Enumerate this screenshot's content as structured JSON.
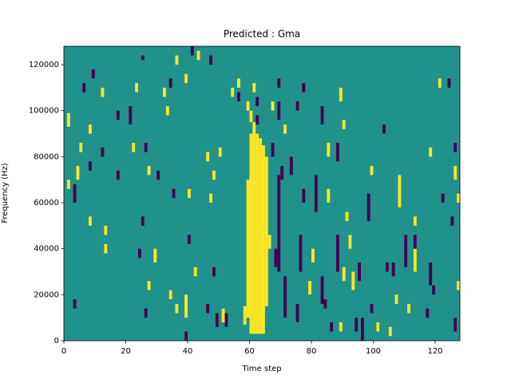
{
  "chart_data": {
    "type": "heatmap",
    "title": "Predicted : Gma",
    "xlabel": "Time step",
    "ylabel": "Frequency (Hz)",
    "xlim": [
      0,
      128
    ],
    "ylim": [
      0,
      128000
    ],
    "xticks": [
      0,
      20,
      40,
      60,
      80,
      100,
      120
    ],
    "yticks": [
      0,
      20000,
      40000,
      60000,
      80000,
      100000,
      120000
    ],
    "background": "#21918c",
    "layers": [
      {
        "color": "#fde725",
        "cells": [
          [
            58,
            7000,
            15000
          ],
          [
            59,
            10000,
            70000
          ],
          [
            60,
            3000,
            90000
          ],
          [
            61,
            3000,
            95000
          ],
          [
            62,
            3000,
            90000
          ],
          [
            63,
            3000,
            88000
          ],
          [
            64,
            3000,
            85000
          ],
          [
            65,
            15000,
            80000
          ],
          [
            59,
            100000,
            104000
          ],
          [
            60,
            95000,
            100000
          ],
          [
            1,
            93000,
            99000
          ],
          [
            5,
            82000,
            86000
          ],
          [
            4,
            70000,
            76000
          ],
          [
            1,
            66000,
            70000
          ],
          [
            8,
            90000,
            94000
          ],
          [
            12,
            106000,
            110000
          ],
          [
            8,
            50000,
            54000
          ],
          [
            13,
            46000,
            50000
          ],
          [
            13,
            38000,
            42000
          ],
          [
            22,
            82000,
            86000
          ],
          [
            23,
            108000,
            112000
          ],
          [
            27,
            72000,
            76000
          ],
          [
            27,
            22000,
            26000
          ],
          [
            29,
            34000,
            40000
          ],
          [
            32,
            106000,
            110000
          ],
          [
            33,
            98000,
            102000
          ],
          [
            34,
            18000,
            22000
          ],
          [
            36,
            120000,
            124000
          ],
          [
            36,
            12000,
            16000
          ],
          [
            39,
            10000,
            20000
          ],
          [
            40,
            62000,
            66000
          ],
          [
            42,
            28000,
            32000
          ],
          [
            43,
            122000,
            126000
          ],
          [
            39,
            112000,
            116000
          ],
          [
            46,
            78000,
            82000
          ],
          [
            48,
            70000,
            74000
          ],
          [
            50,
            80000,
            84000
          ],
          [
            47,
            60000,
            64000
          ],
          [
            51,
            8000,
            14000
          ],
          [
            54,
            106000,
            110000
          ],
          [
            56,
            110000,
            114000
          ],
          [
            61,
            108000,
            112000
          ],
          [
            67,
            100000,
            104000
          ],
          [
            71,
            90000,
            94000
          ],
          [
            66,
            40000,
            46000
          ],
          [
            80,
            34000,
            40000
          ],
          [
            79,
            20000,
            26000
          ],
          [
            85,
            80000,
            86000
          ],
          [
            85,
            60000,
            66000
          ],
          [
            89,
            104000,
            110000
          ],
          [
            90,
            92000,
            96000
          ],
          [
            90,
            26000,
            32000
          ],
          [
            93,
            22000,
            30000
          ],
          [
            91,
            52000,
            56000
          ],
          [
            92,
            40000,
            46000
          ],
          [
            99,
            72000,
            76000
          ],
          [
            108,
            58000,
            72000
          ],
          [
            113,
            50000,
            54000
          ],
          [
            113,
            30000,
            40000
          ],
          [
            118,
            80000,
            84000
          ],
          [
            121,
            110000,
            114000
          ],
          [
            126,
            70000,
            76000
          ],
          [
            127,
            22000,
            26000
          ],
          [
            127,
            60000,
            64000
          ],
          [
            107,
            16000,
            20000
          ],
          [
            111,
            12000,
            16000
          ],
          [
            89,
            4000,
            8000
          ],
          [
            101,
            4000,
            8000
          ],
          [
            105,
            2000,
            6000
          ]
        ]
      },
      {
        "color": "#440154",
        "cells": [
          [
            9,
            114000,
            118000
          ],
          [
            6,
            108000,
            112000
          ],
          [
            3,
            60000,
            68000
          ],
          [
            3,
            14000,
            18000
          ],
          [
            8,
            74000,
            78000
          ],
          [
            12,
            80000,
            84000
          ],
          [
            17,
            96000,
            100000
          ],
          [
            21,
            94000,
            102000
          ],
          [
            17,
            70000,
            74000
          ],
          [
            25,
            122000,
            124000
          ],
          [
            26,
            82000,
            86000
          ],
          [
            25,
            50000,
            54000
          ],
          [
            24,
            36000,
            40000
          ],
          [
            26,
            10000,
            14000
          ],
          [
            30,
            70000,
            74000
          ],
          [
            34,
            110000,
            114000
          ],
          [
            35,
            62000,
            66000
          ],
          [
            40,
            42000,
            46000
          ],
          [
            39,
            0,
            4000
          ],
          [
            41,
            124000,
            128000
          ],
          [
            46,
            12000,
            16000
          ],
          [
            48,
            28000,
            32000
          ],
          [
            49,
            6000,
            12000
          ],
          [
            47,
            120000,
            124000
          ],
          [
            52,
            6000,
            12000
          ],
          [
            56,
            104000,
            108000
          ],
          [
            62,
            102000,
            106000
          ],
          [
            62,
            94000,
            98000
          ],
          [
            67,
            80000,
            86000
          ],
          [
            69,
            110000,
            114000
          ],
          [
            69,
            30000,
            72000
          ],
          [
            70,
            70000,
            76000
          ],
          [
            71,
            10000,
            28000
          ],
          [
            68,
            32000,
            40000
          ],
          [
            73,
            72000,
            80000
          ],
          [
            75,
            100000,
            104000
          ],
          [
            77,
            60000,
            66000
          ],
          [
            77,
            108000,
            112000
          ],
          [
            76,
            30000,
            46000
          ],
          [
            75,
            8000,
            16000
          ],
          [
            81,
            56000,
            72000
          ],
          [
            83,
            94000,
            102000
          ],
          [
            83,
            16000,
            28000
          ],
          [
            84,
            14000,
            18000
          ],
          [
            86,
            4000,
            8000
          ],
          [
            88,
            78000,
            86000
          ],
          [
            88,
            30000,
            46000
          ],
          [
            95,
            26000,
            34000
          ],
          [
            94,
            4000,
            10000
          ],
          [
            96,
            0,
            10000
          ],
          [
            98,
            52000,
            64000
          ],
          [
            99,
            12000,
            16000
          ],
          [
            103,
            90000,
            94000
          ],
          [
            104,
            30000,
            34000
          ],
          [
            106,
            28000,
            34000
          ],
          [
            110,
            32000,
            46000
          ],
          [
            113,
            40000,
            46000
          ],
          [
            117,
            10000,
            14000
          ],
          [
            118,
            24000,
            34000
          ],
          [
            119,
            20000,
            24000
          ],
          [
            122,
            60000,
            64000
          ],
          [
            124,
            110000,
            114000
          ],
          [
            125,
            50000,
            54000
          ],
          [
            126,
            82000,
            86000
          ],
          [
            126,
            4000,
            10000
          ],
          [
            69,
            96000,
            104000
          ]
        ]
      }
    ]
  }
}
